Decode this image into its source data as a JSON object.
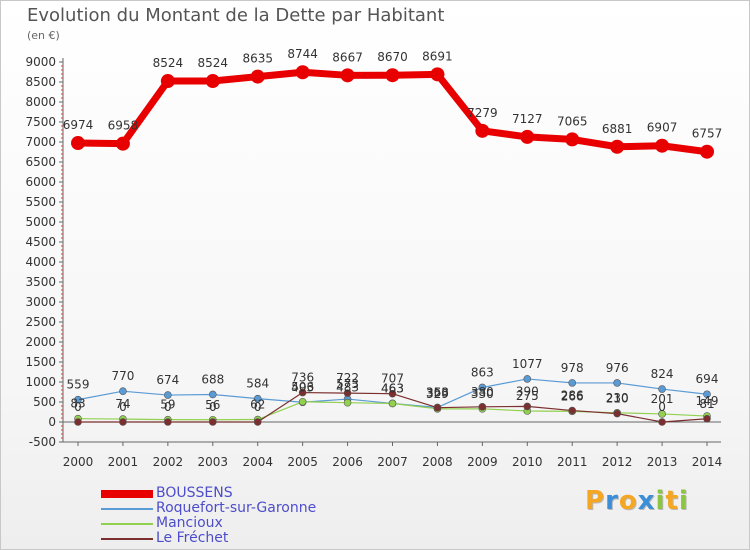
{
  "title": "Evolution du Montant de la Dette par Habitant",
  "unit_label": "(en €)",
  "logo": {
    "text": "Proxiti",
    "letters": [
      "P",
      "r",
      "o",
      "x",
      "i",
      "t",
      "i"
    ],
    "colors": [
      "#f5a623",
      "#3a8fd8",
      "#f5a623",
      "#3a8fd8",
      "#8cc63f",
      "#f5a623",
      "#8cc63f"
    ]
  },
  "chart_data": {
    "type": "line",
    "title": "Evolution du Montant de la Dette par Habitant",
    "ylabel": "(en €)",
    "xlabel": "",
    "x": [
      "2000",
      "2001",
      "2002",
      "2003",
      "2004",
      "2005",
      "2006",
      "2007",
      "2008",
      "2009",
      "2010",
      "2011",
      "2012",
      "2013",
      "2014"
    ],
    "ylim": [
      -500,
      9000
    ],
    "yticks": [
      -500,
      0,
      500,
      1000,
      1500,
      2000,
      2500,
      3000,
      3500,
      4000,
      4500,
      5000,
      5500,
      6000,
      6500,
      7000,
      7500,
      8000,
      8500,
      9000
    ],
    "grid": false,
    "legend_position": "bottom-left",
    "series": [
      {
        "name": "BOUSSENS",
        "color": "#e80000",
        "width": 7,
        "marker": 7,
        "values": [
          6974,
          6958,
          8524,
          8524,
          8635,
          8744,
          8667,
          8670,
          8691,
          7279,
          7127,
          7065,
          6881,
          6907,
          6757
        ]
      },
      {
        "name": "Roquefort-sur-Garonne",
        "color": "#5b9bd5",
        "width": 1.2,
        "marker": 3.5,
        "values": [
          559,
          770,
          674,
          688,
          584,
          493,
          573,
          463,
          363,
          863,
          1077,
          978,
          976,
          824,
          694
        ]
      },
      {
        "name": "Mancioux",
        "color": "#92d050",
        "width": 1.2,
        "marker": 3.5,
        "values": [
          83,
          74,
          59,
          56,
          62,
          506,
          483,
          463,
          329,
          330,
          275,
          266,
          230,
          201,
          149
        ]
      },
      {
        "name": "Le Fréchet",
        "color": "#7b2f2f",
        "width": 1.2,
        "marker": 3.5,
        "values": [
          0,
          0,
          0,
          0,
          0,
          736,
          722,
          707,
          358,
          380,
          390,
          286,
          210,
          0,
          81
        ]
      }
    ]
  }
}
